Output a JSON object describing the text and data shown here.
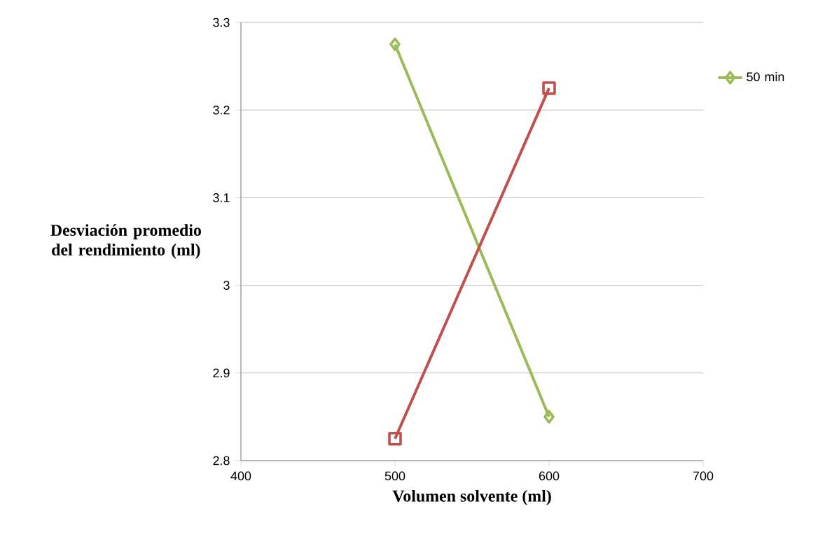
{
  "chart_data": {
    "type": "line",
    "xlabel": "Volumen solvente (ml)",
    "ylabel": "Desviación promedio del rendimiento (ml)",
    "x": [
      500,
      600
    ],
    "series": [
      {
        "name": "50 min",
        "color": "#9bbb59",
        "values": [
          3.275,
          2.85
        ],
        "marker": "diamond"
      },
      {
        "color": "#c0504d",
        "values": [
          2.825,
          3.225
        ],
        "marker": "square"
      }
    ],
    "xlim": [
      400,
      700
    ],
    "xticks": [
      400,
      500,
      600,
      700
    ],
    "ylim": [
      2.8,
      3.3
    ],
    "yticks": [
      2.8,
      2.9,
      3,
      3.1,
      3.2,
      3.3
    ],
    "grid": "y",
    "legend": "right",
    "line_style": "solid"
  }
}
